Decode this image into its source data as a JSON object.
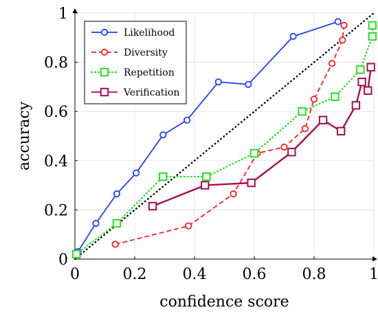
{
  "chart_data": {
    "type": "line",
    "xlabel": "confidence score",
    "ylabel": "accuracy",
    "xlim": [
      0,
      1
    ],
    "ylim": [
      0,
      1
    ],
    "x_ticks": [
      "0",
      "0.2",
      "0.4",
      "0.6",
      "0.8",
      "1"
    ],
    "y_ticks": [
      "0",
      "0.2",
      "0.4",
      "0.6",
      "0.8",
      "1"
    ],
    "grid": true,
    "legend_position": "top-left",
    "reference_line": {
      "style": "dotted",
      "color": "#000000",
      "points": [
        [
          0,
          0
        ],
        [
          1,
          1
        ]
      ]
    },
    "series": [
      {
        "name": "Likelihood",
        "color": "#1f3fff",
        "line": "solid",
        "marker": "circle-open",
        "points": [
          [
            0.01,
            0.03
          ],
          [
            0.07,
            0.145
          ],
          [
            0.14,
            0.265
          ],
          [
            0.205,
            0.35
          ],
          [
            0.295,
            0.505
          ],
          [
            0.375,
            0.565
          ],
          [
            0.48,
            0.72
          ],
          [
            0.58,
            0.71
          ],
          [
            0.73,
            0.905
          ],
          [
            0.88,
            0.965
          ]
        ]
      },
      {
        "name": "Diversity",
        "color": "#ff1a1a",
        "line": "dashed",
        "marker": "circle-open",
        "points": [
          [
            0.135,
            0.06
          ],
          [
            0.38,
            0.135
          ],
          [
            0.53,
            0.265
          ],
          [
            0.61,
            0.43
          ],
          [
            0.7,
            0.455
          ],
          [
            0.77,
            0.53
          ],
          [
            0.8,
            0.65
          ],
          [
            0.86,
            0.795
          ],
          [
            0.895,
            0.89
          ],
          [
            0.9,
            0.95
          ]
        ]
      },
      {
        "name": "Repetition",
        "color": "#22e022",
        "line": "dotted",
        "marker": "square-open",
        "points": [
          [
            0.005,
            0.02
          ],
          [
            0.14,
            0.145
          ],
          [
            0.295,
            0.335
          ],
          [
            0.44,
            0.335
          ],
          [
            0.6,
            0.43
          ],
          [
            0.76,
            0.6
          ],
          [
            0.87,
            0.66
          ],
          [
            0.955,
            0.77
          ],
          [
            0.995,
            0.905
          ],
          [
            0.995,
            0.95
          ]
        ]
      },
      {
        "name": "Verification",
        "color": "#aa0b4c",
        "line": "solid",
        "marker": "square-open",
        "points": [
          [
            0.26,
            0.215
          ],
          [
            0.435,
            0.3
          ],
          [
            0.59,
            0.31
          ],
          [
            0.725,
            0.435
          ],
          [
            0.83,
            0.565
          ],
          [
            0.89,
            0.52
          ],
          [
            0.94,
            0.625
          ],
          [
            0.96,
            0.72
          ],
          [
            0.98,
            0.685
          ],
          [
            0.99,
            0.78
          ]
        ]
      }
    ]
  }
}
